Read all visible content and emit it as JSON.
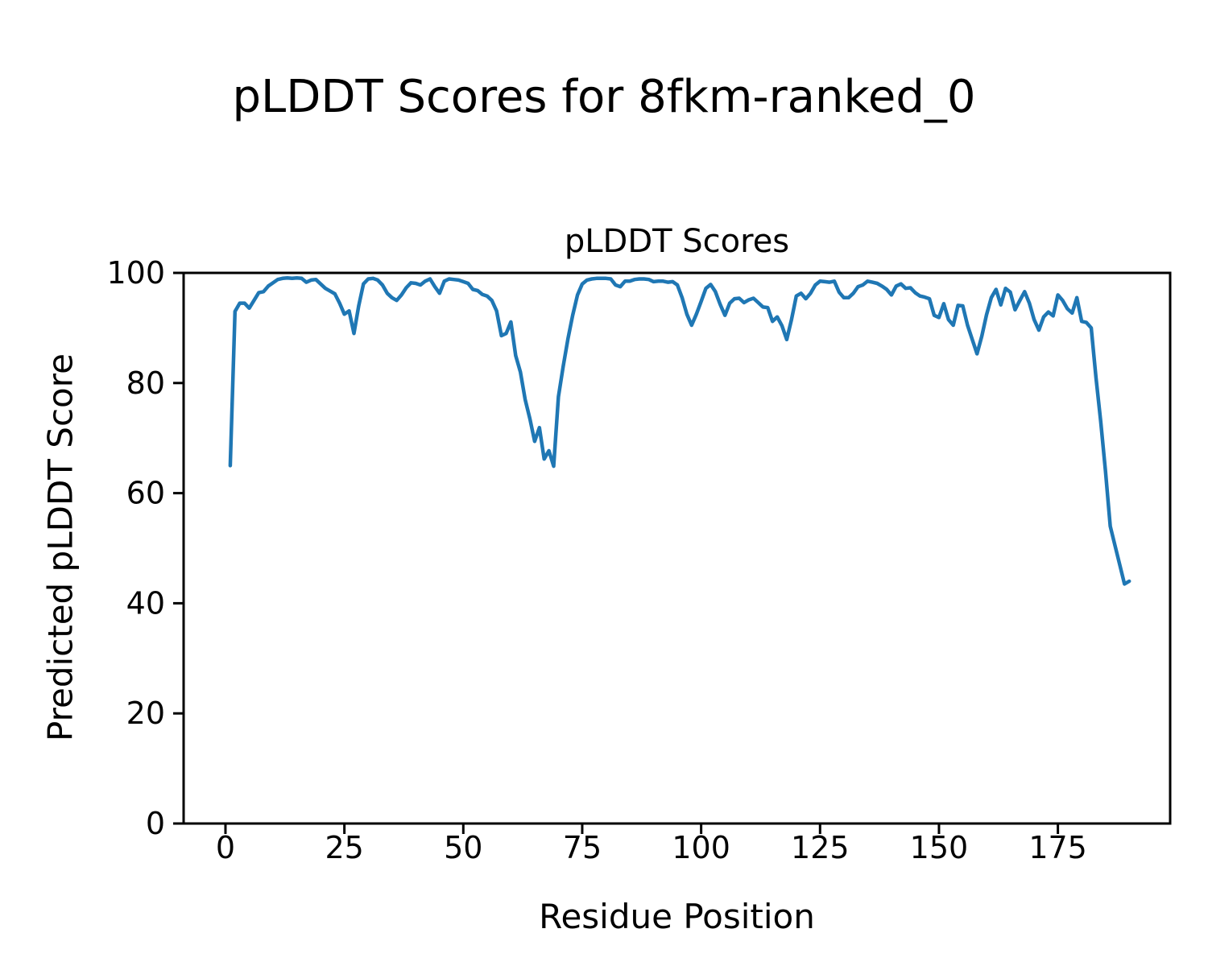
{
  "figure_title": "pLDDT Scores for 8fkm-ranked_0",
  "axes": {
    "title": "pLDDT Scores",
    "xlabel": "Residue Position",
    "ylabel": "Predicted pLDDT Score"
  },
  "chart_data": {
    "type": "line",
    "title": "pLDDT Scores",
    "xlabel": "Residue Position",
    "ylabel": "Predicted pLDDT Score",
    "line_color": "#1f77b4",
    "frame_color": "#000000",
    "grid": false,
    "legend_position": "none",
    "xlim": [
      -8.8,
      198.6
    ],
    "ylim": [
      0,
      100
    ],
    "xticks": [
      0,
      25,
      50,
      75,
      100,
      125,
      150,
      175
    ],
    "yticks": [
      0,
      20,
      40,
      60,
      80,
      100
    ],
    "series_name": "pLDDT",
    "x": [
      1,
      2,
      3,
      4,
      5,
      6,
      7,
      8,
      9,
      10,
      11,
      12,
      13,
      14,
      15,
      16,
      17,
      18,
      19,
      20,
      21,
      22,
      23,
      24,
      25,
      26,
      27,
      28,
      29,
      30,
      31,
      32,
      33,
      34,
      35,
      36,
      37,
      38,
      39,
      40,
      41,
      42,
      43,
      44,
      45,
      46,
      47,
      48,
      49,
      50,
      51,
      52,
      53,
      54,
      55,
      56,
      57,
      58,
      59,
      60,
      61,
      62,
      63,
      64,
      65,
      66,
      67,
      68,
      69,
      70,
      71,
      72,
      73,
      74,
      75,
      76,
      77,
      78,
      79,
      80,
      81,
      82,
      83,
      84,
      85,
      86,
      87,
      88,
      89,
      90,
      91,
      92,
      93,
      94,
      95,
      96,
      97,
      98,
      99,
      100,
      101,
      102,
      103,
      104,
      105,
      106,
      107,
      108,
      109,
      110,
      111,
      112,
      113,
      114,
      115,
      116,
      117,
      118,
      119,
      120,
      121,
      122,
      123,
      124,
      125,
      126,
      127,
      128,
      129,
      130,
      131,
      132,
      133,
      134,
      135,
      136,
      137,
      138,
      139,
      140,
      141,
      142,
      143,
      144,
      145,
      146,
      147,
      148,
      149,
      150,
      151,
      152,
      153,
      154,
      155,
      156,
      157,
      158,
      159,
      160,
      161,
      162,
      163,
      164,
      165,
      166,
      167,
      168,
      169,
      170,
      171,
      172,
      173,
      174,
      175,
      176,
      177,
      178,
      179,
      180,
      181,
      182,
      183,
      184,
      185,
      186,
      187,
      188,
      189,
      190
    ],
    "values": [
      65,
      93,
      94.5,
      94.5,
      93.6,
      95,
      96.4,
      96.6,
      97.6,
      98.2,
      98.8,
      99,
      99.1,
      99,
      99.1,
      99,
      98.3,
      98.7,
      98.8,
      98,
      97.2,
      96.7,
      96.2,
      94.5,
      92.5,
      93.1,
      89,
      94,
      98,
      98.9,
      99,
      98.7,
      97.8,
      96.3,
      95.5,
      95,
      96,
      97.3,
      98.2,
      98.1,
      97.8,
      98.5,
      98.9,
      97.5,
      96.3,
      98.5,
      98.9,
      98.8,
      98.7,
      98.4,
      98.1,
      97,
      96.8,
      96.1,
      95.8,
      95,
      93.1,
      88.6,
      89,
      91.1,
      85,
      82,
      77,
      73.5,
      69.4,
      71.9,
      66.2,
      67.7,
      64.9,
      77.5,
      83,
      88,
      92.3,
      96,
      98,
      98.7,
      98.9,
      99,
      99,
      99,
      98.9,
      97.8,
      97.5,
      98.5,
      98.5,
      98.8,
      98.9,
      98.9,
      98.8,
      98.4,
      98.5,
      98.5,
      98.3,
      98.4,
      97.8,
      95.5,
      92.5,
      90.5,
      92.5,
      94.8,
      97.2,
      97.9,
      96.6,
      94.3,
      92.3,
      94.5,
      95.3,
      95.4,
      94.6,
      95.1,
      95.4,
      94.6,
      93.8,
      93.7,
      91.2,
      92,
      90.4,
      87.9,
      91.5,
      95.8,
      96.3,
      95.3,
      96.3,
      97.8,
      98.5,
      98.4,
      98.3,
      98.5,
      96.5,
      95.5,
      95.5,
      96.3,
      97.5,
      97.8,
      98.5,
      98.3,
      98.1,
      97.6,
      97,
      96,
      97.6,
      98,
      97.2,
      97.3,
      96.4,
      95.8,
      95.6,
      95.3,
      92.3,
      91.9,
      94.4,
      91.5,
      90.5,
      94.1,
      94,
      90.5,
      87.9,
      85.3,
      88.5,
      92.4,
      95.5,
      97,
      94.2,
      97.2,
      96.5,
      93.3,
      95,
      96.6,
      94.5,
      91.5,
      89.6,
      92,
      92.9,
      92.2,
      96,
      95,
      93.5,
      92.7,
      95.5,
      91.2,
      91,
      90,
      81,
      73,
      64,
      54,
      50.5,
      47,
      43.5,
      44
    ]
  }
}
